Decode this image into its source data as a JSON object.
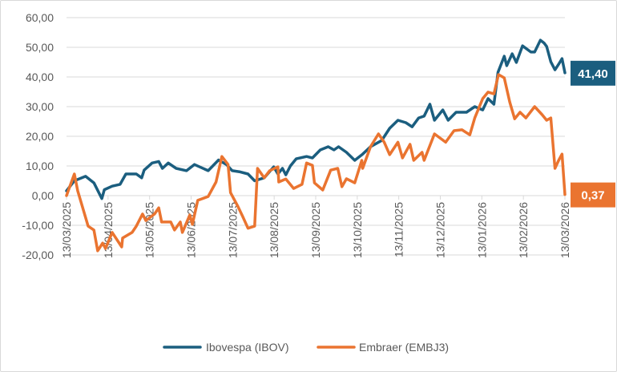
{
  "chart_data": {
    "type": "line",
    "title": "",
    "xlabel": "",
    "ylabel": "",
    "ylim": [
      -20,
      60
    ],
    "yticks": [
      "-20,00",
      "-10,00",
      "0,00",
      "10,00",
      "20,00",
      "30,00",
      "40,00",
      "50,00",
      "60,00"
    ],
    "ytick_values": [
      -20,
      -10,
      0,
      10,
      20,
      30,
      40,
      50,
      60
    ],
    "x_unit": "months since 13/03/2025",
    "xlim": [
      0,
      12
    ],
    "xticks": [
      "13/03/2025",
      "13/04/2025",
      "13/05/2025",
      "13/06/2025",
      "13/07/2025",
      "13/08/2025",
      "13/09/2025",
      "13/10/2025",
      "13/11/2025",
      "13/12/2025",
      "13/01/2026",
      "13/02/2026",
      "13/03/2026"
    ],
    "grid": true,
    "legend_position": "bottom",
    "series": [
      {
        "name": "Ibovespa (IBOV)",
        "color": "#1b5e7f",
        "end_label": "41,40",
        "points": [
          [
            0,
            1.6
          ],
          [
            0.19,
            5
          ],
          [
            0.46,
            6.5
          ],
          [
            0.66,
            4.3
          ],
          [
            0.85,
            -1
          ],
          [
            0.91,
            2
          ],
          [
            1.1,
            3.2
          ],
          [
            1.29,
            3.8
          ],
          [
            1.43,
            7.3
          ],
          [
            1.68,
            7.3
          ],
          [
            1.81,
            6
          ],
          [
            1.87,
            8.6
          ],
          [
            2.06,
            11
          ],
          [
            2.22,
            11.5
          ],
          [
            2.31,
            9.2
          ],
          [
            2.45,
            11
          ],
          [
            2.64,
            9.2
          ],
          [
            2.89,
            8.4
          ],
          [
            3.08,
            10.5
          ],
          [
            3.41,
            8.4
          ],
          [
            3.66,
            12
          ],
          [
            3.85,
            10.5
          ],
          [
            3.99,
            8.4
          ],
          [
            4.18,
            8
          ],
          [
            4.37,
            7.3
          ],
          [
            4.53,
            5
          ],
          [
            4.76,
            6
          ],
          [
            4.99,
            9.7
          ],
          [
            5.09,
            7.3
          ],
          [
            5.2,
            9.2
          ],
          [
            5.28,
            7
          ],
          [
            5.39,
            10
          ],
          [
            5.53,
            12.4
          ],
          [
            5.78,
            13.2
          ],
          [
            5.92,
            12.7
          ],
          [
            6.11,
            15.4
          ],
          [
            6.3,
            16.5
          ],
          [
            6.44,
            15.4
          ],
          [
            6.55,
            16.5
          ],
          [
            6.74,
            14.6
          ],
          [
            6.94,
            11.9
          ],
          [
            7.13,
            14
          ],
          [
            7.32,
            16.5
          ],
          [
            7.59,
            18.6
          ],
          [
            7.78,
            22.7
          ],
          [
            7.98,
            25.4
          ],
          [
            8.17,
            24.6
          ],
          [
            8.32,
            23.2
          ],
          [
            8.48,
            26.2
          ],
          [
            8.61,
            26.8
          ],
          [
            8.75,
            30.8
          ],
          [
            8.86,
            25.4
          ],
          [
            9.06,
            28.9
          ],
          [
            9.19,
            25.4
          ],
          [
            9.38,
            28.1
          ],
          [
            9.63,
            28.1
          ],
          [
            9.83,
            30
          ],
          [
            10.02,
            28.9
          ],
          [
            10.15,
            32.7
          ],
          [
            10.29,
            30.8
          ],
          [
            10.39,
            41.6
          ],
          [
            10.54,
            47
          ],
          [
            10.6,
            43.8
          ],
          [
            10.73,
            47.8
          ],
          [
            10.83,
            44.9
          ],
          [
            10.98,
            50.5
          ],
          [
            11.18,
            48.4
          ],
          [
            11.27,
            48.4
          ],
          [
            11.41,
            52.4
          ],
          [
            11.5,
            51.4
          ],
          [
            11.56,
            50.3
          ],
          [
            11.66,
            45.1
          ],
          [
            11.76,
            42.4
          ],
          [
            11.85,
            44.3
          ],
          [
            11.93,
            46.2
          ],
          [
            12,
            41.4
          ]
        ]
      },
      {
        "name": "Embraer (EMBJ3)",
        "color": "#ea7430",
        "end_label": "0,37",
        "points": [
          [
            0,
            0
          ],
          [
            0.19,
            7.3
          ],
          [
            0.27,
            1.6
          ],
          [
            0.52,
            -10.3
          ],
          [
            0.66,
            -11.6
          ],
          [
            0.75,
            -18.6
          ],
          [
            0.87,
            -16
          ],
          [
            0.94,
            -17.8
          ],
          [
            1.1,
            -12.4
          ],
          [
            1.33,
            -17.3
          ],
          [
            1.35,
            -14.3
          ],
          [
            1.58,
            -12.4
          ],
          [
            1.68,
            -10.3
          ],
          [
            1.83,
            -6.2
          ],
          [
            1.91,
            -8.4
          ],
          [
            2.12,
            -6.2
          ],
          [
            2.22,
            -4.1
          ],
          [
            2.29,
            -8.9
          ],
          [
            2.51,
            -8.9
          ],
          [
            2.6,
            -11.6
          ],
          [
            2.74,
            -8.9
          ],
          [
            2.79,
            -12.4
          ],
          [
            2.97,
            -6.5
          ],
          [
            3.03,
            -9.7
          ],
          [
            3.16,
            -1.6
          ],
          [
            3.41,
            -0.3
          ],
          [
            3.6,
            4.6
          ],
          [
            3.74,
            13.2
          ],
          [
            3.89,
            10.5
          ],
          [
            3.95,
            1
          ],
          [
            4.12,
            -3.5
          ],
          [
            4.24,
            -7
          ],
          [
            4.37,
            -11
          ],
          [
            4.53,
            -10.3
          ],
          [
            4.6,
            9.2
          ],
          [
            4.76,
            6
          ],
          [
            4.89,
            8.4
          ],
          [
            5.09,
            9.7
          ],
          [
            5.11,
            4.6
          ],
          [
            5.28,
            5.6
          ],
          [
            5.47,
            2.4
          ],
          [
            5.67,
            3.8
          ],
          [
            5.78,
            11
          ],
          [
            5.92,
            10.2
          ],
          [
            5.97,
            4.3
          ],
          [
            6.17,
            1.9
          ],
          [
            6.36,
            8.6
          ],
          [
            6.53,
            9.2
          ],
          [
            6.63,
            3
          ],
          [
            6.74,
            5.7
          ],
          [
            6.94,
            4.3
          ],
          [
            7.11,
            11.9
          ],
          [
            7.13,
            9.2
          ],
          [
            7.32,
            16.5
          ],
          [
            7.51,
            20.8
          ],
          [
            7.65,
            18
          ],
          [
            7.78,
            13.8
          ],
          [
            7.98,
            18
          ],
          [
            8.09,
            12.7
          ],
          [
            8.27,
            17.3
          ],
          [
            8.36,
            11.9
          ],
          [
            8.56,
            14.6
          ],
          [
            8.61,
            11.9
          ],
          [
            8.86,
            20.8
          ],
          [
            9.13,
            18
          ],
          [
            9.33,
            21.9
          ],
          [
            9.52,
            22.2
          ],
          [
            9.71,
            20.5
          ],
          [
            9.83,
            26.2
          ],
          [
            10.02,
            32.7
          ],
          [
            10.15,
            34.9
          ],
          [
            10.29,
            34.3
          ],
          [
            10.4,
            40.8
          ],
          [
            10.54,
            39.7
          ],
          [
            10.67,
            31.6
          ],
          [
            10.79,
            25.9
          ],
          [
            10.92,
            28.1
          ],
          [
            11.06,
            26.2
          ],
          [
            11.27,
            30
          ],
          [
            11.45,
            27.3
          ],
          [
            11.56,
            25.4
          ],
          [
            11.66,
            26.2
          ],
          [
            11.76,
            9.2
          ],
          [
            11.85,
            11.9
          ],
          [
            11.93,
            14
          ],
          [
            12,
            0.37
          ]
        ]
      }
    ]
  }
}
